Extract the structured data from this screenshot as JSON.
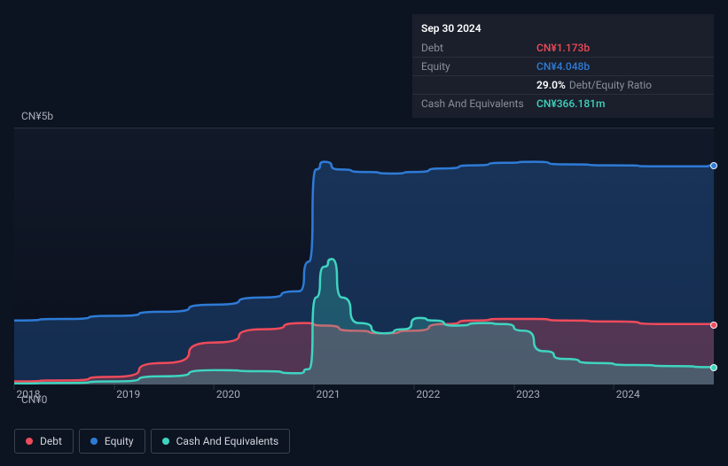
{
  "tooltip": {
    "date": "Sep 30 2024",
    "rows": [
      {
        "label": "Debt",
        "value": "CN¥1.173b",
        "class": "debt"
      },
      {
        "label": "Equity",
        "value": "CN¥4.048b",
        "class": "equity"
      },
      {
        "label": "",
        "ratio_value": "29.0%",
        "ratio_label": "Debt/Equity Ratio"
      },
      {
        "label": "Cash And Equivalents",
        "value": "CN¥366.181m",
        "class": "cash"
      }
    ]
  },
  "chart": {
    "type": "area",
    "background_gradient": [
      "#121a2a",
      "#0a0f1c"
    ],
    "border_top_color": "#2a3240",
    "x_axis": {
      "min": 2018,
      "max": 2025,
      "ticks": [
        2018,
        2019,
        2020,
        2021,
        2022,
        2023,
        2024
      ],
      "label_color": "#a8adb8",
      "label_fontsize": 12
    },
    "y_axis": {
      "min": 0,
      "max": 5000,
      "tick_top": "CN¥5b",
      "tick_bottom": "CN¥0",
      "label_color": "#a8adb8",
      "label_fontsize": 12
    },
    "series": [
      {
        "name": "Equity",
        "color": "#2e7bd6",
        "fill": "rgba(46,123,214,0.28)",
        "stroke_width": 2.5,
        "end_dot": true,
        "points": [
          [
            2018.0,
            1250
          ],
          [
            2018.5,
            1280
          ],
          [
            2019.0,
            1340
          ],
          [
            2019.5,
            1420
          ],
          [
            2020.0,
            1560
          ],
          [
            2020.5,
            1700
          ],
          [
            2020.85,
            1820
          ],
          [
            2020.95,
            2400
          ],
          [
            2021.02,
            4200
          ],
          [
            2021.1,
            4350
          ],
          [
            2021.25,
            4200
          ],
          [
            2021.5,
            4150
          ],
          [
            2021.8,
            4120
          ],
          [
            2022.0,
            4150
          ],
          [
            2022.3,
            4220
          ],
          [
            2022.6,
            4280
          ],
          [
            2022.9,
            4330
          ],
          [
            2023.2,
            4350
          ],
          [
            2023.5,
            4300
          ],
          [
            2024.0,
            4280
          ],
          [
            2024.5,
            4260
          ],
          [
            2024.9,
            4260
          ],
          [
            2025.0,
            4280
          ]
        ]
      },
      {
        "name": "Debt",
        "color": "#ef4b5a",
        "fill": "rgba(239,75,90,0.28)",
        "stroke_width": 2.5,
        "end_dot": true,
        "points": [
          [
            2018.0,
            60
          ],
          [
            2018.5,
            80
          ],
          [
            2019.0,
            150
          ],
          [
            2019.5,
            420
          ],
          [
            2020.0,
            820
          ],
          [
            2020.5,
            1080
          ],
          [
            2020.9,
            1200
          ],
          [
            2021.1,
            1150
          ],
          [
            2021.4,
            1050
          ],
          [
            2021.7,
            1000
          ],
          [
            2022.0,
            1050
          ],
          [
            2022.3,
            1180
          ],
          [
            2022.6,
            1250
          ],
          [
            2022.9,
            1280
          ],
          [
            2023.2,
            1280
          ],
          [
            2023.5,
            1250
          ],
          [
            2024.0,
            1230
          ],
          [
            2024.5,
            1180
          ],
          [
            2025.0,
            1180
          ]
        ]
      },
      {
        "name": "Cash And Equivalents",
        "color": "#3fd4c0",
        "fill": "rgba(63,212,192,0.25)",
        "stroke_width": 2.5,
        "end_dot": true,
        "points": [
          [
            2018.0,
            20
          ],
          [
            2018.5,
            30
          ],
          [
            2019.0,
            60
          ],
          [
            2019.5,
            160
          ],
          [
            2020.0,
            280
          ],
          [
            2020.5,
            260
          ],
          [
            2020.85,
            220
          ],
          [
            2020.95,
            300
          ],
          [
            2021.02,
            1700
          ],
          [
            2021.1,
            2300
          ],
          [
            2021.18,
            2450
          ],
          [
            2021.28,
            1700
          ],
          [
            2021.45,
            1200
          ],
          [
            2021.7,
            1000
          ],
          [
            2021.9,
            1080
          ],
          [
            2022.05,
            1300
          ],
          [
            2022.2,
            1250
          ],
          [
            2022.4,
            1150
          ],
          [
            2022.7,
            1200
          ],
          [
            2022.9,
            1180
          ],
          [
            2023.1,
            1050
          ],
          [
            2023.3,
            650
          ],
          [
            2023.5,
            500
          ],
          [
            2023.8,
            420
          ],
          [
            2024.2,
            380
          ],
          [
            2024.6,
            360
          ],
          [
            2025.0,
            340
          ]
        ]
      }
    ]
  },
  "legend": {
    "items": [
      {
        "label": "Debt",
        "color": "#ef4b5a"
      },
      {
        "label": "Equity",
        "color": "#2e7bd6"
      },
      {
        "label": "Cash And Equivalents",
        "color": "#3fd4c0"
      }
    ],
    "border_color": "#3a4150",
    "text_color": "#d0d4dc",
    "fontsize": 12
  }
}
